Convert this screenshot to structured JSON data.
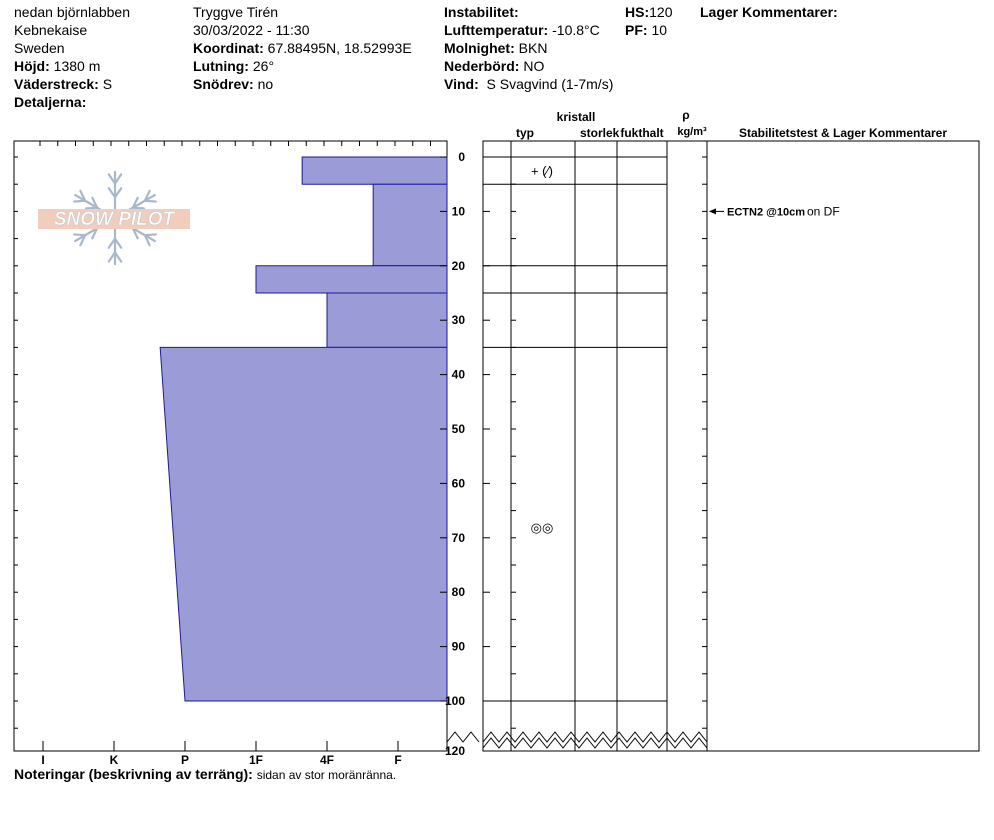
{
  "header": {
    "location": "nedan björnlabben",
    "area": "Kebnekaise",
    "country": "Sweden",
    "elevation_label": "Höjd:",
    "elevation_value": "1380 m",
    "aspect_label": "Väderstreck:",
    "aspect_value": "S",
    "details_label": "Detaljerna:",
    "observer": "Tryggve  Tirén",
    "datetime": "30/03/2022 - 11:30",
    "coord_label": "Koordinat:",
    "coord_value": "67.88495N, 18.52993E",
    "slope_label": "Lutning:",
    "slope_value": "26°",
    "drift_label": "Snödrev:",
    "drift_value": "no",
    "instability_label": "Instabilitet:",
    "airtemp_label": "Lufttemperatur:",
    "airtemp_value": "-10.8°C",
    "sky_label": "Molnighet:",
    "sky_value": "BKN",
    "precip_label": "Nederbörd:",
    "precip_value": "NO",
    "wind_label": "Vind:",
    "wind_value": "S Svagvind (1-7m/s)",
    "hs_label": "HS:",
    "hs_value": "120",
    "pf_label": "PF:",
    "pf_value": "10",
    "layer_comments_label": "Lager Kommentarer:"
  },
  "watermark": {
    "text": "SNOW PILOT"
  },
  "columns": {
    "crystal": "kristall",
    "type": "typ",
    "size": "storlek",
    "moisture": "fukthalt",
    "rho": "ρ",
    "rho_unit": "kg/m³",
    "stability": "Stabilitetstest & Lager Kommentarer"
  },
  "crystal_symbols": [
    {
      "depth": 2.5,
      "symbol": "+ (⁄)"
    },
    {
      "depth": 68,
      "symbol": "◎◎"
    }
  ],
  "stability_tests": [
    {
      "depth": 10,
      "code": "ECTN2 @10cm",
      "note": "on DF"
    }
  ],
  "footer": {
    "notes_label": "Noteringar (beskrivning av terräng):",
    "notes_value": "sidan av stor moränränna."
  },
  "chart_data": {
    "type": "area",
    "title": "",
    "xlabel": "",
    "ylabel": "",
    "x_tick_labels": [
      "I",
      "K",
      "P",
      "1F",
      "4F",
      "F"
    ],
    "y_ticks": [
      0,
      10,
      20,
      30,
      40,
      50,
      60,
      70,
      80,
      90,
      100,
      120
    ],
    "ylim": [
      0,
      120
    ],
    "profile_depth": 100,
    "hardness_scale_order": [
      "F",
      "4F",
      "1F",
      "P",
      "K",
      "I"
    ],
    "layers": [
      {
        "top": 0,
        "bottom": 5,
        "hardness_top": "4F+",
        "hardness_bottom": "4F+"
      },
      {
        "top": 5,
        "bottom": 20,
        "hardness_top": "F+",
        "hardness_bottom": "F+"
      },
      {
        "top": 20,
        "bottom": 25,
        "hardness_top": "1F",
        "hardness_bottom": "1F"
      },
      {
        "top": 25,
        "bottom": 35,
        "hardness_top": "4F",
        "hardness_bottom": "4F"
      },
      {
        "top": 35,
        "bottom": 100,
        "hardness_top": "P+",
        "hardness_bottom": "P"
      }
    ],
    "hardness_values": {
      "F": 1,
      "F+": 1.35,
      "4F": 2,
      "4F+": 2.35,
      "1F": 3,
      "P": 4,
      "P+": 4.35,
      "K": 5,
      "I": 6
    },
    "fill_color": "#9b9bd8",
    "edge_color": "#1a1a99",
    "grid": false
  }
}
